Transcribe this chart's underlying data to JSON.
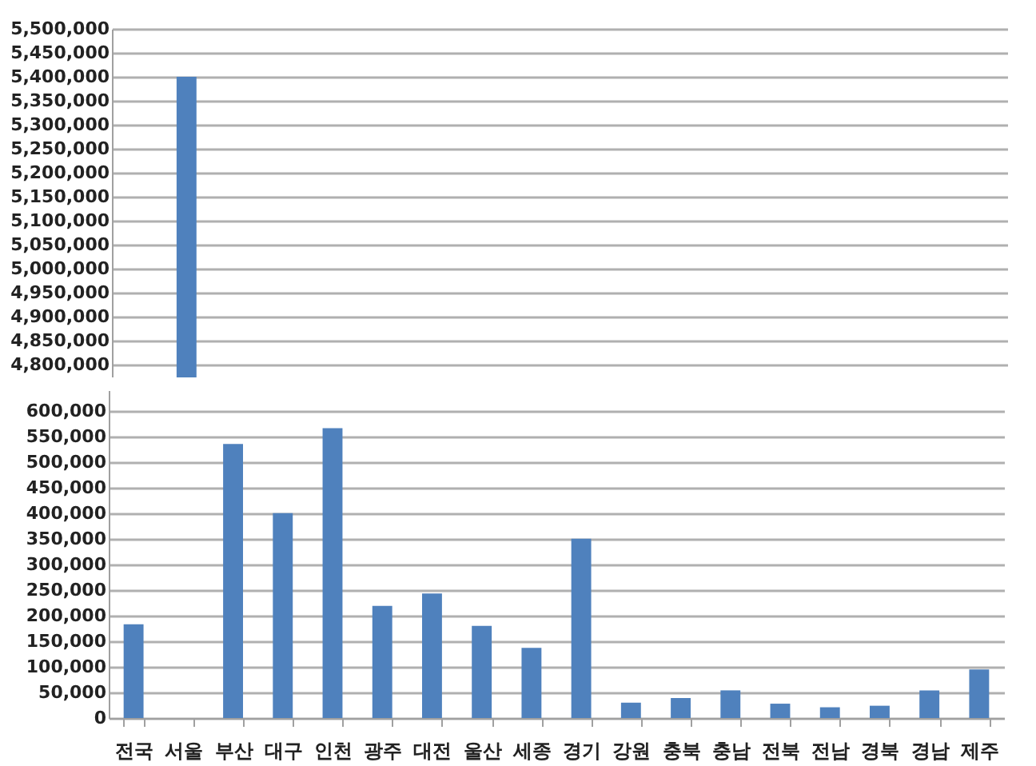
{
  "chart_data": [
    {
      "type": "bar",
      "categories": [
        null,
        null,
        null,
        null,
        null,
        null,
        null,
        null,
        null,
        null,
        null,
        null,
        null,
        null,
        null,
        null,
        null,
        null
      ],
      "values": [
        null,
        5400000,
        null,
        null,
        null,
        null,
        null,
        null,
        null,
        null,
        null,
        null,
        null,
        null,
        null,
        null,
        null,
        null
      ],
      "color": "#4f81bd",
      "ylim": [
        4760000,
        5500000
      ],
      "yticks": [
        {
          "value": 4800000,
          "label": "4,800,000"
        },
        {
          "value": 4850000,
          "label": "4,850,000"
        },
        {
          "value": 4900000,
          "label": "4,900,000"
        },
        {
          "value": 4950000,
          "label": "4,950,000"
        },
        {
          "value": 5000000,
          "label": "5,000,000"
        },
        {
          "value": 5050000,
          "label": "5,050,000"
        },
        {
          "value": 5100000,
          "label": "5,100,000"
        },
        {
          "value": 5150000,
          "label": "5,150,000"
        },
        {
          "value": 5200000,
          "label": "5,200,000"
        },
        {
          "value": 5250000,
          "label": "5,250,000"
        },
        {
          "value": 5300000,
          "label": "5,300,000"
        },
        {
          "value": 5350000,
          "label": "5,350,000"
        },
        {
          "value": 5400000,
          "label": "5,400,000"
        },
        {
          "value": 5450000,
          "label": "5,450,000"
        },
        {
          "value": 5500000,
          "label": "5,500,000"
        }
      ],
      "grid": "y",
      "tick_labels": "y"
    },
    {
      "type": "bar",
      "categories": [
        "전국",
        "서울",
        "부산",
        "대구",
        "인천",
        "광주",
        "대전",
        "울산",
        "세종",
        "경기",
        "강원",
        "충북",
        "충남",
        "전북",
        "전남",
        "경북",
        "경남",
        "제주"
      ],
      "values": [
        183000,
        null,
        535000,
        400000,
        566000,
        219000,
        243000,
        180000,
        137000,
        350000,
        30000,
        39000,
        54000,
        28000,
        21000,
        24000,
        54000,
        95000
      ],
      "color": "#4f81bd",
      "ylim": [
        0,
        640000
      ],
      "yticks": [
        0,
        {
          "value": 50000,
          "label": "50,000"
        },
        {
          "value": 100000,
          "label": "100,000"
        },
        {
          "value": 150000,
          "label": "150,000"
        },
        {
          "value": 200000,
          "label": "200,000"
        },
        {
          "value": 250000,
          "label": "250,000"
        },
        {
          "value": 300000,
          "label": "300,000"
        },
        {
          "value": 350000,
          "label": "350,000"
        },
        {
          "value": 400000,
          "label": "400,000"
        },
        {
          "value": 450000,
          "label": "450,000"
        },
        {
          "value": 500000,
          "label": "500,000"
        },
        {
          "value": 550000,
          "label": "550,000"
        },
        {
          "value": 600000,
          "label": "600,000"
        }
      ],
      "grid": "y"
    }
  ]
}
